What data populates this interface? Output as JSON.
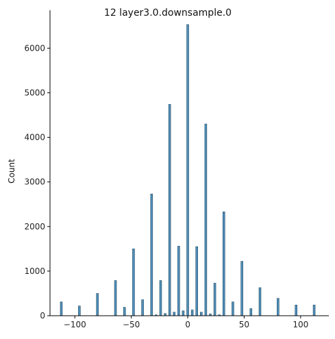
{
  "chart_data": {
    "type": "bar",
    "title": "12  layer3.0.downsample.0",
    "xlabel": "",
    "ylabel": "Count",
    "xlim": [
      -122,
      125
    ],
    "ylim": [
      0,
      6850
    ],
    "xticks": [
      -100,
      -50,
      0,
      50,
      100
    ],
    "yticks": [
      0,
      1000,
      2000,
      3000,
      4000,
      5000,
      6000
    ],
    "grid": false,
    "bin_width": 1.8,
    "bars": [
      {
        "x": -112,
        "count": 310
      },
      {
        "x": -96,
        "count": 220
      },
      {
        "x": -80,
        "count": 500
      },
      {
        "x": -64,
        "count": 790
      },
      {
        "x": -56,
        "count": 190
      },
      {
        "x": -48,
        "count": 1500
      },
      {
        "x": -40,
        "count": 360
      },
      {
        "x": -32,
        "count": 2730
      },
      {
        "x": -28,
        "count": 20
      },
      {
        "x": -24,
        "count": 790
      },
      {
        "x": -20,
        "count": 50
      },
      {
        "x": -16,
        "count": 4740
      },
      {
        "x": -12,
        "count": 80
      },
      {
        "x": -8,
        "count": 1560
      },
      {
        "x": -4,
        "count": 110
      },
      {
        "x": 0,
        "count": 6530
      },
      {
        "x": 4,
        "count": 130
      },
      {
        "x": 8,
        "count": 1550
      },
      {
        "x": 12,
        "count": 80
      },
      {
        "x": 16,
        "count": 4300
      },
      {
        "x": 20,
        "count": 40
      },
      {
        "x": 24,
        "count": 730
      },
      {
        "x": 28,
        "count": 20
      },
      {
        "x": 32,
        "count": 2330
      },
      {
        "x": 40,
        "count": 310
      },
      {
        "x": 48,
        "count": 1220
      },
      {
        "x": 56,
        "count": 160
      },
      {
        "x": 64,
        "count": 630
      },
      {
        "x": 80,
        "count": 390
      },
      {
        "x": 96,
        "count": 240
      },
      {
        "x": 112,
        "count": 240
      }
    ]
  }
}
